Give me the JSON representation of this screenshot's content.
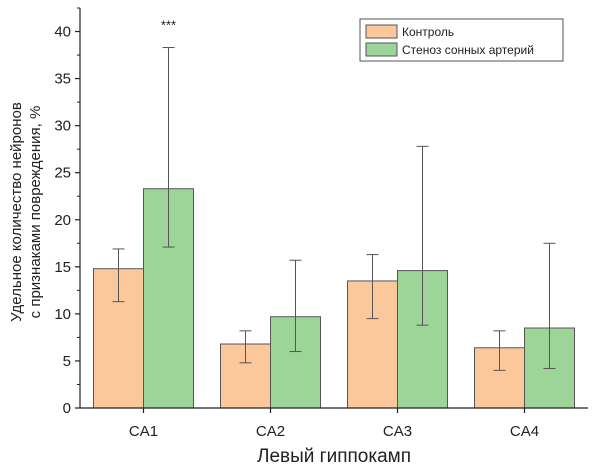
{
  "chart_data": {
    "type": "bar",
    "title": "",
    "xlabel": "Левый гиппокамп",
    "ylabel_lines": [
      "Удельное количество нейронов",
      "с признаками повреждения, %"
    ],
    "categories": [
      "CA1",
      "CA2",
      "CA3",
      "CA4"
    ],
    "ylim": [
      0,
      42.5
    ],
    "yticks": [
      0,
      5,
      10,
      15,
      20,
      25,
      30,
      35,
      40
    ],
    "grid": false,
    "legend_position": "top-right",
    "series": [
      {
        "name": "Контроль",
        "color": "#fbc89b",
        "values": [
          14.8,
          6.8,
          13.5,
          6.4
        ],
        "err_low": [
          11.3,
          4.8,
          9.5,
          4.0
        ],
        "err_high": [
          16.9,
          8.2,
          16.3,
          8.2
        ]
      },
      {
        "name": "Стеноз сонных артерий",
        "color": "#9dd497",
        "values": [
          23.3,
          9.7,
          14.6,
          8.5
        ],
        "err_low": [
          17.1,
          6.0,
          8.8,
          4.2
        ],
        "err_high": [
          38.3,
          15.7,
          27.8,
          17.5
        ]
      }
    ],
    "annotations": [
      {
        "text": "***",
        "category": "CA1",
        "series": 1,
        "y": 40.2
      }
    ]
  }
}
